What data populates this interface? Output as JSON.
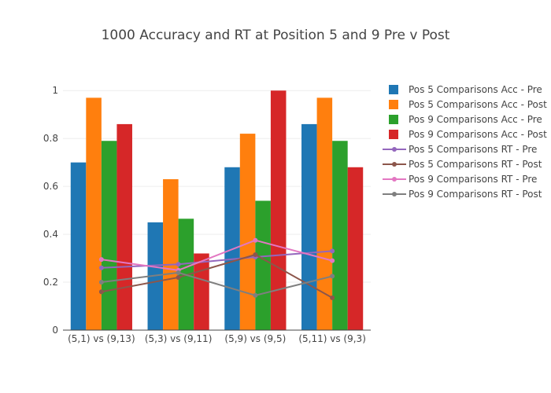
{
  "chart_data": {
    "type": "bar",
    "title": "1000 Accuracy and RT at Position 5 and 9 Pre v Post",
    "xlabel": "",
    "ylabel": "",
    "ylim": [
      0,
      1.05
    ],
    "yticks": [
      "0",
      "0.2",
      "0.4",
      "0.6",
      "0.8",
      "1"
    ],
    "categories": [
      "(5,1) vs (9,13)",
      "(5,3) vs (9,11)",
      "(5,9) vs (9,5)",
      "(5,11) vs (9,3)"
    ],
    "grid": true,
    "legend_position": "right",
    "bar_series": [
      {
        "name": "Pos 5 Comparisons Acc - Pre",
        "color": "#1f77b4",
        "values": [
          0.7,
          0.45,
          0.68,
          0.86
        ]
      },
      {
        "name": "Pos 5 Comparisons Acc - Post",
        "color": "#ff7f0e",
        "values": [
          0.97,
          0.63,
          0.82,
          0.97
        ]
      },
      {
        "name": "Pos 9 Comparisons Acc - Pre",
        "color": "#2ca02c",
        "values": [
          0.79,
          0.465,
          0.54,
          0.79
        ]
      },
      {
        "name": "Pos 9 Comparisons Acc - Post",
        "color": "#d62728",
        "values": [
          0.86,
          0.32,
          1.0,
          0.68
        ]
      }
    ],
    "line_series": [
      {
        "name": "Pos 5 Comparisons RT - Pre",
        "color": "#9467bd",
        "values": [
          0.26,
          0.275,
          0.305,
          0.33
        ]
      },
      {
        "name": "Pos 5 Comparisons RT - Post",
        "color": "#8c564b",
        "values": [
          0.16,
          0.22,
          0.315,
          0.135
        ]
      },
      {
        "name": "Pos 9 Comparisons RT - Pre",
        "color": "#e377c2",
        "values": [
          0.295,
          0.25,
          0.375,
          0.29
        ]
      },
      {
        "name": "Pos 9 Comparisons RT - Post",
        "color": "#7f7f7f",
        "values": [
          0.2,
          0.24,
          0.145,
          0.225
        ]
      }
    ]
  }
}
